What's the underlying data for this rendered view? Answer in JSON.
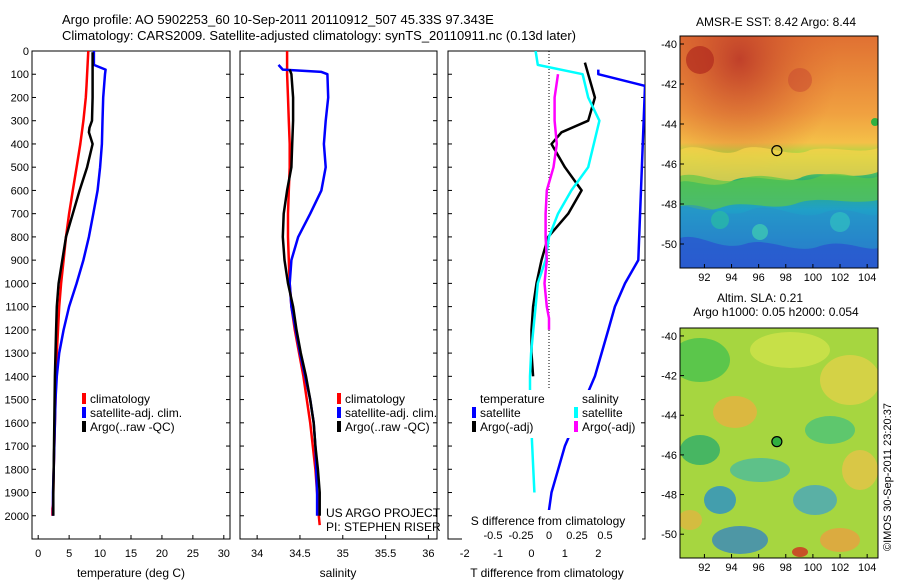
{
  "title_line1": "Argo profile: AO 5902253_60 10-Sep-2011 20110912_507 45.33S 97.343E",
  "title_line2": "Climatology: CARS2009. Satellite-adjusted climatology: synTS_20110911.nc (0.13d later)",
  "stamp": "©IMOS 30-Sep-2011 23:20:37",
  "colors": {
    "climatology": "#ff0000",
    "satellite": "#0000ff",
    "argo": "#000000",
    "satellite_diff_s": "#00ffff",
    "argo_diff_s": "#ff00ff"
  },
  "chart_data": [
    {
      "type": "line",
      "id": "temperature",
      "xlabel": "temperature (deg C)",
      "ylabel": "",
      "xlim": [
        -1,
        31
      ],
      "ylim": [
        2100,
        0
      ],
      "y_reversed": true,
      "xticks": [
        0,
        5,
        10,
        15,
        20,
        25,
        30
      ],
      "yticks": [
        0,
        100,
        200,
        300,
        400,
        500,
        600,
        700,
        800,
        900,
        1000,
        1100,
        1200,
        1300,
        1400,
        1500,
        1600,
        1700,
        1800,
        1900,
        2000
      ],
      "legend": [
        "climatology",
        "satellite-adj. clim.",
        "Argo(..raw -QC)"
      ],
      "series": [
        {
          "name": "climatology",
          "color": "#ff0000",
          "x": [
            8.1,
            8.0,
            7.9,
            7.8,
            7.7,
            7.5,
            7.3,
            6.8,
            6.2,
            5.6,
            5.0,
            4.5,
            4.1,
            3.7,
            3.4,
            3.2,
            3.0,
            2.9,
            2.8,
            2.7,
            2.6,
            2.5,
            2.45,
            2.4,
            2.35,
            2.3,
            2.3,
            2.3,
            2.3
          ],
          "y": [
            0,
            50,
            100,
            150,
            200,
            250,
            300,
            400,
            500,
            600,
            700,
            800,
            900,
            1000,
            1100,
            1200,
            1300,
            1400,
            1500,
            1600,
            1700,
            1800,
            1900,
            1950,
            1960,
            1970,
            1980,
            1990,
            2000
          ]
        },
        {
          "name": "satellite-adj. clim.",
          "color": "#0000ff",
          "x": [
            9.0,
            9.0,
            10.9,
            10.8,
            10.5,
            10.4,
            10.3,
            10.0,
            9.6,
            8.9,
            8.2,
            7.3,
            6.2,
            5.0,
            4.1,
            3.4,
            3.0,
            2.8,
            2.7,
            2.6,
            2.5,
            2.4,
            2.4
          ],
          "y": [
            0,
            60,
            80,
            100,
            200,
            300,
            400,
            500,
            600,
            700,
            800,
            900,
            1000,
            1100,
            1200,
            1300,
            1400,
            1500,
            1600,
            1700,
            1800,
            1900,
            2000
          ]
        },
        {
          "name": "Argo(..raw -QC)",
          "color": "#000000",
          "x": [
            8.8,
            8.8,
            8.8,
            8.7,
            8.3,
            8.2,
            8.8,
            7.9,
            6.7,
            5.6,
            4.5,
            3.9,
            3.3,
            3.0,
            2.9,
            2.8,
            2.7,
            2.65,
            2.6,
            2.55,
            2.5,
            2.45,
            2.45
          ],
          "y": [
            5,
            100,
            200,
            300,
            330,
            350,
            400,
            500,
            600,
            700,
            800,
            900,
            1000,
            1100,
            1200,
            1300,
            1400,
            1500,
            1600,
            1700,
            1800,
            1900,
            2000
          ]
        }
      ]
    },
    {
      "type": "line",
      "id": "salinity",
      "xlabel": "salinity",
      "xlim": [
        33.8,
        36.1
      ],
      "ylim": [
        2100,
        0
      ],
      "y_reversed": true,
      "xticks": [
        34,
        34.5,
        35,
        35.5,
        36
      ],
      "xtick_labels": [
        "34",
        "34.5",
        "35",
        "35.5",
        "36"
      ],
      "legend": [
        "climatology",
        "satellite-adj. clim.",
        "Argo(..raw -QC)"
      ],
      "annotation": [
        "US ARGO PROJECT",
        "PI: STEPHEN RISER"
      ],
      "series": [
        {
          "name": "climatology",
          "color": "#ff0000",
          "x": [
            34.35,
            34.35,
            34.36,
            34.37,
            34.38,
            34.38,
            34.37,
            34.36,
            34.36,
            34.37,
            34.38,
            34.4,
            34.44,
            34.49,
            34.54,
            34.58,
            34.62,
            34.65,
            34.68,
            34.7,
            34.71,
            34.72,
            34.73
          ],
          "y": [
            0,
            100,
            200,
            300,
            400,
            500,
            600,
            700,
            800,
            900,
            1000,
            1100,
            1200,
            1300,
            1400,
            1500,
            1600,
            1700,
            1800,
            1900,
            1950,
            2000,
            2040
          ]
        },
        {
          "name": "satellite-adj. clim.",
          "color": "#0000ff",
          "x": [
            34.25,
            34.3,
            34.75,
            34.82,
            34.83,
            34.8,
            34.78,
            34.8,
            34.75,
            34.62,
            34.48,
            34.4,
            34.38,
            34.4,
            34.45,
            34.5,
            34.56,
            34.62,
            34.66,
            34.68,
            34.69,
            34.7,
            34.7
          ],
          "y": [
            60,
            80,
            90,
            100,
            200,
            300,
            400,
            500,
            600,
            700,
            800,
            900,
            1000,
            1100,
            1200,
            1300,
            1400,
            1500,
            1600,
            1700,
            1800,
            1900,
            2000
          ]
        },
        {
          "name": "Argo(..raw -QC)",
          "color": "#000000",
          "x": [
            34.38,
            34.4,
            34.42,
            34.42,
            34.41,
            34.4,
            34.35,
            34.31,
            34.3,
            34.32,
            34.36,
            34.42,
            34.46,
            34.51,
            34.57,
            34.62,
            34.66,
            34.68,
            34.71,
            34.73,
            34.73
          ],
          "y": [
            80,
            100,
            200,
            300,
            400,
            500,
            600,
            700,
            800,
            900,
            1000,
            1100,
            1200,
            1300,
            1400,
            1500,
            1600,
            1700,
            1800,
            1900,
            2000
          ]
        }
      ]
    },
    {
      "type": "line",
      "id": "difference",
      "xlabel": "T difference from climatology",
      "xlabel_top": "S difference from climatology",
      "xlim": [
        -2.5,
        3.4
      ],
      "ylim": [
        2100,
        0
      ],
      "y_reversed": true,
      "xticks": [
        -2,
        -1,
        0,
        1,
        2
      ],
      "s_xticks": [
        -0.5,
        -0.25,
        0,
        0.25,
        0.5
      ],
      "s_xtick_labels": [
        "-0.5",
        "-0.25",
        "0",
        "0.25",
        "0.5"
      ],
      "legend_temperature_title": "temperature",
      "legend_salinity_title": "salinity",
      "legend": [
        "satellite",
        "Argo(-adj)",
        "satellite",
        "Argo(-adj)"
      ],
      "series": [
        {
          "name": "satellite",
          "color": "#0000ff",
          "quantity": "temperature",
          "x": [
            2.0,
            2.0,
            3.4,
            3.2,
            2.8,
            2.5,
            2.3,
            2.1,
            1.9,
            1.6,
            1.3,
            1.0,
            0.8,
            0.6,
            0.5,
            0.4,
            0.35,
            0.3,
            0.3,
            0.3
          ],
          "y": [
            80,
            100,
            150,
            900,
            1000,
            1100,
            1200,
            1300,
            1400,
            1500,
            1600,
            1700,
            1800,
            1900,
            2000,
            2030,
            2040,
            2050,
            2060,
            2070
          ]
        },
        {
          "name": "Argo(-adj)",
          "color": "#000000",
          "quantity": "temperature",
          "x": [
            1.6,
            1.7,
            1.9,
            1.7,
            0.9,
            0.6,
            1.0,
            1.5,
            1.1,
            0.5,
            0.3,
            0.15,
            0.05,
            0.0,
            0.0,
            0.05
          ],
          "y": [
            50,
            100,
            200,
            300,
            350,
            400,
            500,
            600,
            700,
            800,
            900,
            1000,
            1100,
            1200,
            1300,
            1400
          ]
        },
        {
          "name": "satellite",
          "color": "#00ffff",
          "quantity": "salinity",
          "x": [
            -0.12,
            -0.1,
            0.3,
            0.35,
            0.45,
            0.4,
            0.35,
            0.2,
            0.08,
            0.0,
            -0.03,
            -0.1,
            -0.12,
            -0.14,
            -0.16,
            -0.17,
            -0.17,
            -0.16,
            -0.15,
            -0.14,
            -0.13
          ],
          "y": [
            0,
            60,
            100,
            200,
            300,
            400,
            500,
            600,
            700,
            800,
            900,
            1000,
            1100,
            1200,
            1300,
            1400,
            1500,
            1600,
            1700,
            1800,
            1900
          ]
        },
        {
          "name": "Argo(-adj)",
          "color": "#ff00ff",
          "quantity": "salinity",
          "x": [
            0.08,
            0.05,
            0.05,
            0.07,
            0.04,
            -0.02,
            -0.03,
            -0.03,
            -0.02,
            -0.04,
            -0.02,
            0.0,
            0.0
          ],
          "y": [
            100,
            200,
            300,
            400,
            500,
            600,
            700,
            800,
            900,
            1000,
            1100,
            1150,
            1200
          ]
        }
      ]
    },
    {
      "type": "heatmap",
      "id": "sst_map",
      "title": "AMSR-E SST: 8.42 Argo: 8.44",
      "xticks": [
        92,
        94,
        96,
        98,
        100,
        102,
        104
      ],
      "yticks": [
        -40,
        -42,
        -44,
        -46,
        -48,
        -50
      ],
      "xlim": [
        90.2,
        104.8
      ],
      "ylim": [
        -51.2,
        -39.6
      ],
      "marker": {
        "lon": 97.343,
        "lat": -45.33
      }
    },
    {
      "type": "heatmap",
      "id": "sla_map",
      "title_line1": "Altim. SLA: 0.21",
      "title_line2": "Argo h1000: 0.05 h2000: 0.054",
      "xticks": [
        92,
        94,
        96,
        98,
        100,
        102,
        104
      ],
      "yticks": [
        -40,
        -42,
        -44,
        -46,
        -48,
        -50
      ],
      "xlim": [
        90.2,
        104.8
      ],
      "ylim": [
        -51.2,
        -39.6
      ],
      "marker": {
        "lon": 97.343,
        "lat": -45.33
      }
    }
  ]
}
